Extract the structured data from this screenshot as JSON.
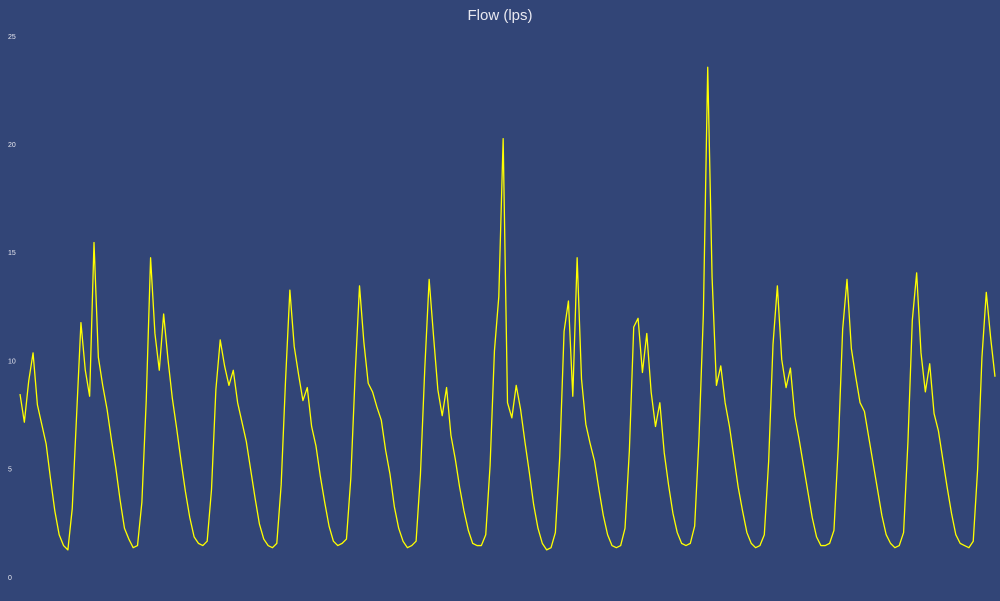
{
  "chart_data": {
    "type": "line",
    "title": "Flow (lps)",
    "color": "#ffff00",
    "background": "#324577",
    "ylim": [
      0,
      25
    ],
    "yticks": [
      0,
      5,
      10,
      15,
      20,
      25
    ],
    "grid": false,
    "values": [
      8.5,
      7.2,
      9.1,
      10.4,
      8.0,
      7.1,
      6.2,
      4.6,
      3.1,
      2.0,
      1.5,
      1.3,
      3.2,
      7.5,
      11.8,
      9.6,
      8.4,
      15.5,
      10.2,
      8.9,
      7.8,
      6.4,
      5.1,
      3.6,
      2.3,
      1.8,
      1.4,
      1.5,
      3.5,
      8.2,
      14.8,
      11.3,
      9.6,
      12.2,
      10.1,
      8.3,
      6.9,
      5.4,
      4.0,
      2.8,
      1.9,
      1.6,
      1.5,
      1.7,
      4.1,
      8.7,
      11.0,
      9.8,
      8.9,
      9.6,
      8.1,
      7.2,
      6.3,
      5.0,
      3.7,
      2.5,
      1.8,
      1.5,
      1.4,
      1.6,
      4.3,
      9.1,
      13.3,
      10.7,
      9.4,
      8.2,
      8.8,
      7.0,
      6.1,
      4.7,
      3.5,
      2.4,
      1.7,
      1.5,
      1.6,
      1.8,
      4.6,
      9.4,
      13.5,
      10.9,
      9.0,
      8.6,
      7.9,
      7.3,
      5.9,
      4.8,
      3.3,
      2.3,
      1.7,
      1.4,
      1.5,
      1.7,
      4.8,
      9.7,
      13.8,
      11.2,
      8.7,
      7.5,
      8.8,
      6.6,
      5.5,
      4.2,
      3.1,
      2.2,
      1.6,
      1.5,
      1.5,
      2.0,
      5.2,
      10.5,
      13.0,
      20.3,
      8.1,
      7.4,
      8.9,
      7.8,
      6.3,
      4.9,
      3.4,
      2.3,
      1.6,
      1.3,
      1.4,
      2.1,
      5.6,
      11.4,
      12.8,
      8.4,
      14.8,
      9.2,
      7.1,
      6.2,
      5.4,
      4.1,
      2.9,
      2.0,
      1.5,
      1.4,
      1.5,
      2.3,
      5.9,
      11.6,
      12.0,
      9.5,
      11.3,
      8.6,
      7.0,
      8.1,
      5.8,
      4.3,
      3.0,
      2.1,
      1.6,
      1.5,
      1.6,
      2.4,
      6.5,
      12.2,
      23.6,
      13.9,
      8.9,
      9.8,
      8.1,
      7.0,
      5.6,
      4.2,
      3.1,
      2.1,
      1.6,
      1.4,
      1.5,
      2.0,
      5.4,
      10.8,
      13.5,
      10.1,
      8.8,
      9.7,
      7.5,
      6.4,
      5.2,
      4.0,
      2.8,
      1.9,
      1.5,
      1.5,
      1.6,
      2.2,
      6.1,
      11.5,
      13.8,
      10.6,
      9.3,
      8.1,
      7.7,
      6.5,
      5.3,
      4.1,
      2.9,
      2.0,
      1.6,
      1.4,
      1.5,
      2.1,
      6.3,
      11.9,
      14.1,
      10.4,
      8.6,
      9.9,
      7.6,
      6.8,
      5.5,
      4.2,
      3.0,
      2.0,
      1.6,
      1.5,
      1.4,
      1.7,
      5.0,
      10.2,
      13.2,
      11.1,
      9.3
    ]
  }
}
